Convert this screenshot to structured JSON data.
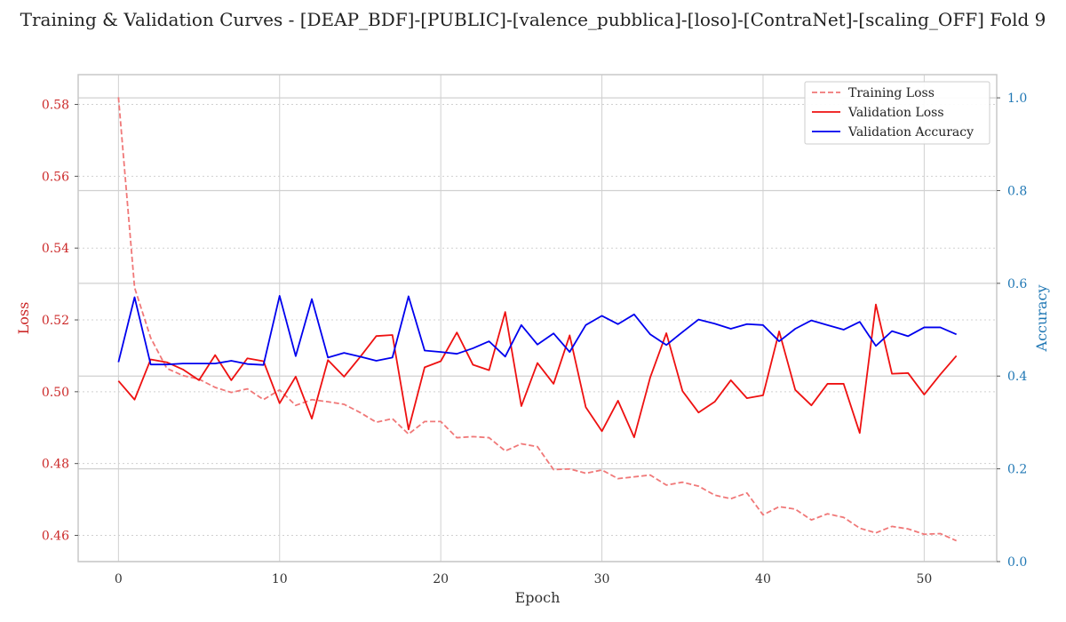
{
  "chart_data": {
    "type": "line",
    "title": "Training & Validation Curves - [DEAP_BDF]-[PUBLIC]-[valence_pubblica]-[loso]-[ContraNet]-[scaling_OFF] Fold 9",
    "xlabel": "Epoch",
    "ylabel_left": "Loss",
    "ylabel_right": "Accuracy",
    "xlim": [
      -2.5,
      54.5
    ],
    "ylim_left": [
      0.4527,
      0.5883
    ],
    "ylim_right": [
      0.0,
      1.05
    ],
    "xticks": [
      0,
      10,
      20,
      30,
      40,
      50
    ],
    "yticks_left": [
      0.46,
      0.48,
      0.5,
      0.52,
      0.54,
      0.56,
      0.58
    ],
    "yticks_left_labels": [
      "0.46",
      "0.48",
      "0.50",
      "0.52",
      "0.54",
      "0.56",
      "0.58"
    ],
    "yticks_right": [
      0.0,
      0.2,
      0.4,
      0.6,
      0.8,
      1.0
    ],
    "yticks_right_labels": [
      "0.0",
      "0.2",
      "0.4",
      "0.6",
      "0.8",
      "1.0"
    ],
    "grid": true,
    "legend_position": "top-right",
    "x": [
      0,
      1,
      2,
      3,
      4,
      5,
      6,
      7,
      8,
      9,
      10,
      11,
      12,
      13,
      14,
      15,
      16,
      17,
      18,
      19,
      20,
      21,
      22,
      23,
      24,
      25,
      26,
      27,
      28,
      29,
      30,
      31,
      32,
      33,
      34,
      35,
      36,
      37,
      38,
      39,
      40,
      41,
      42,
      43,
      44,
      45,
      46,
      47,
      48,
      49,
      50,
      51,
      52
    ],
    "series": [
      {
        "name": "Training Loss",
        "axis": "left",
        "color": "#f07878",
        "dash": "dashed",
        "values": [
          0.582,
          0.529,
          0.515,
          0.5065,
          0.5045,
          0.5035,
          0.5012,
          0.4998,
          0.5008,
          0.4978,
          0.5005,
          0.4962,
          0.4978,
          0.4972,
          0.4965,
          0.4942,
          0.4915,
          0.4925,
          0.4882,
          0.4917,
          0.4917,
          0.4872,
          0.4875,
          0.4872,
          0.4835,
          0.4855,
          0.4847,
          0.4783,
          0.4785,
          0.4773,
          0.4782,
          0.4758,
          0.4763,
          0.4768,
          0.474,
          0.4748,
          0.4737,
          0.4712,
          0.4702,
          0.4718,
          0.4657,
          0.468,
          0.4673,
          0.4643,
          0.466,
          0.465,
          0.462,
          0.4607,
          0.4625,
          0.4618,
          0.4603,
          0.4605,
          0.4585
        ]
      },
      {
        "name": "Validation Loss",
        "axis": "left",
        "color": "#ee1111",
        "dash": "solid",
        "values": [
          0.503,
          0.4978,
          0.509,
          0.5082,
          0.5062,
          0.5032,
          0.5102,
          0.5032,
          0.5093,
          0.5085,
          0.4968,
          0.5042,
          0.4925,
          0.5088,
          0.5042,
          0.5097,
          0.5155,
          0.5158,
          0.4895,
          0.5068,
          0.5085,
          0.5165,
          0.5075,
          0.506,
          0.5222,
          0.496,
          0.508,
          0.5022,
          0.5157,
          0.4957,
          0.489,
          0.4975,
          0.4873,
          0.504,
          0.5163,
          0.5002,
          0.4942,
          0.4972,
          0.5032,
          0.4982,
          0.499,
          0.5168,
          0.5005,
          0.4962,
          0.5022,
          0.5022,
          0.4885,
          0.5243,
          0.505,
          0.5052,
          0.4992,
          0.5048,
          0.51
        ]
      },
      {
        "name": "Validation Accuracy",
        "axis": "right",
        "color": "#0000ee",
        "dash": "solid",
        "values": [
          0.43,
          0.57,
          0.425,
          0.425,
          0.427,
          0.427,
          0.427,
          0.433,
          0.426,
          0.424,
          0.573,
          0.443,
          0.566,
          0.44,
          0.45,
          0.442,
          0.433,
          0.44,
          0.572,
          0.455,
          0.452,
          0.448,
          0.46,
          0.475,
          0.442,
          0.51,
          0.468,
          0.492,
          0.452,
          0.51,
          0.53,
          0.512,
          0.533,
          0.49,
          0.467,
          0.495,
          0.522,
          0.513,
          0.502,
          0.512,
          0.51,
          0.475,
          0.502,
          0.52,
          0.51,
          0.5,
          0.517,
          0.465,
          0.497,
          0.486,
          0.505,
          0.505,
          0.49
        ]
      }
    ]
  },
  "colors": {
    "left_axis": "#cc2a2a",
    "right_axis": "#1f77b4",
    "grid": "#d0d0d0",
    "frame": "#c8c8c8"
  }
}
